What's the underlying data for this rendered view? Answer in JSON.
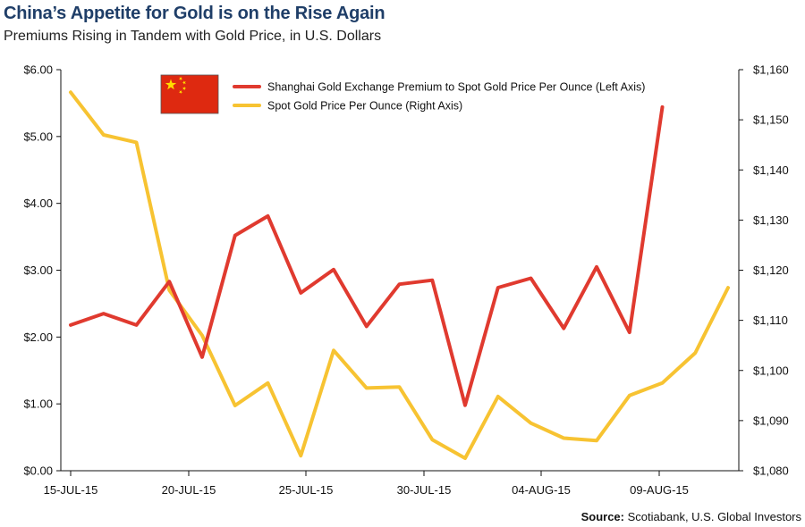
{
  "header": {
    "title": "China’s Appetite for Gold is on the Rise Again",
    "subtitle": "Premiums Rising in Tandem with Gold Price, in U.S. Dollars"
  },
  "footer": {
    "source_label": "Source:",
    "source_text": "Scotiabank, U.S. Global Investors"
  },
  "chart_data": {
    "type": "line",
    "title": "China’s Appetite for Gold is on the Rise Again",
    "subtitle": "Premiums Rising in Tandem with Gold Price, in U.S. Dollars",
    "x": [
      "15-JUL-15",
      "16-JUL-15",
      "17-JUL-15",
      "20-JUL-15",
      "21-JUL-15",
      "22-JUL-15",
      "23-JUL-15",
      "24-JUL-15",
      "27-JUL-15",
      "28-JUL-15",
      "29-JUL-15",
      "30-JUL-15",
      "31-JUL-15",
      "03-AUG-15",
      "04-AUG-15",
      "05-AUG-15",
      "06-AUG-15",
      "07-AUG-15",
      "10-AUG-15",
      "11-AUG-15",
      "12-AUG-15"
    ],
    "x_ticks": [
      "15-JUL-15",
      "20-JUL-15",
      "25-JUL-15",
      "30-JUL-15",
      "04-AUG-15",
      "09-AUG-15"
    ],
    "left_axis": {
      "ylim": [
        0,
        6
      ],
      "ticks": [
        0,
        1,
        2,
        3,
        4,
        5,
        6
      ],
      "tick_labels": [
        "$0.00",
        "$1.00",
        "$2.00",
        "$3.00",
        "$4.00",
        "$5.00",
        "$6.00"
      ]
    },
    "right_axis": {
      "ylim": [
        1080,
        1160
      ],
      "ticks": [
        1080,
        1090,
        1100,
        1110,
        1120,
        1130,
        1140,
        1150,
        1160
      ],
      "tick_labels": [
        "$1,080",
        "$1,090",
        "$1,100",
        "$1,110",
        "$1,120",
        "$1,130",
        "$1,140",
        "$1,150",
        "$1,160"
      ]
    },
    "series": [
      {
        "name": "Shanghai Gold Exchange Premium to Spot Gold Price Per Ounce (Left Axis)",
        "axis": "left",
        "color": "#e03a2f",
        "values": [
          2.18,
          2.35,
          2.18,
          2.83,
          1.7,
          3.52,
          3.81,
          2.66,
          3.01,
          2.16,
          2.79,
          2.85,
          0.98,
          2.74,
          2.88,
          2.13,
          3.05,
          2.07,
          5.44,
          null,
          null
        ]
      },
      {
        "name": "Spot Gold Price Per Ounce (Right Axis)",
        "axis": "right",
        "color": "#f7c332",
        "values": [
          1155.5,
          1147,
          1145.5,
          1116,
          1107,
          1093,
          1097.5,
          1083,
          1104,
          1096.5,
          1096.7,
          1086.2,
          1082.5,
          1094.8,
          1089.5,
          1086.5,
          1086,
          1095,
          1097.5,
          1103.5,
          1116.5
        ]
      }
    ],
    "legend_position": "top",
    "grid": false
  },
  "legend": {
    "flag_colors": {
      "field": "#de2910",
      "star": "#ffde00"
    }
  }
}
